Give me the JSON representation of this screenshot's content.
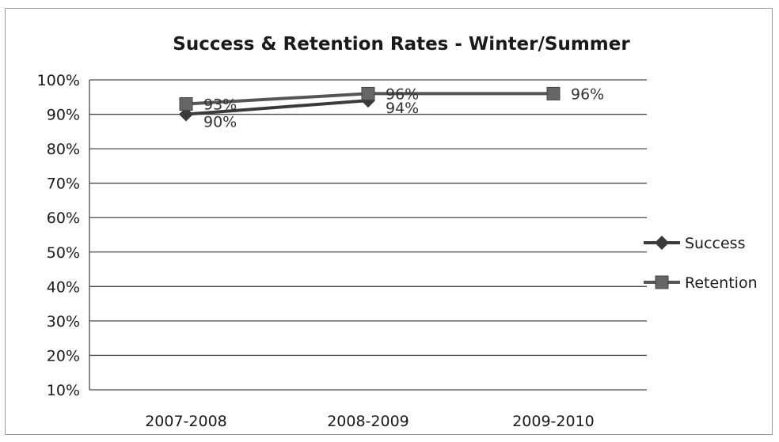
{
  "chart_data": {
    "type": "line",
    "title": "Success & Retention Rates - Winter/Summer",
    "xlabel": "",
    "ylabel": "",
    "categories": [
      "2007-2008",
      "2008-2009",
      "2009-2010"
    ],
    "ylim": [
      10,
      100
    ],
    "yticks": [
      10,
      20,
      30,
      40,
      50,
      60,
      70,
      80,
      90,
      100
    ],
    "ytick_format": "percent",
    "grid": "horizontal",
    "legend_position": "right",
    "series": [
      {
        "name": "Success",
        "marker": "diamond",
        "color": "#3a3a3a",
        "values": [
          90,
          94,
          null
        ],
        "data_labels": [
          "90%",
          "94%",
          ""
        ]
      },
      {
        "name": "Retention",
        "marker": "square",
        "color": "#555555",
        "values": [
          93,
          96,
          96
        ],
        "data_labels": [
          "93%",
          "96%",
          "96%"
        ]
      }
    ]
  }
}
